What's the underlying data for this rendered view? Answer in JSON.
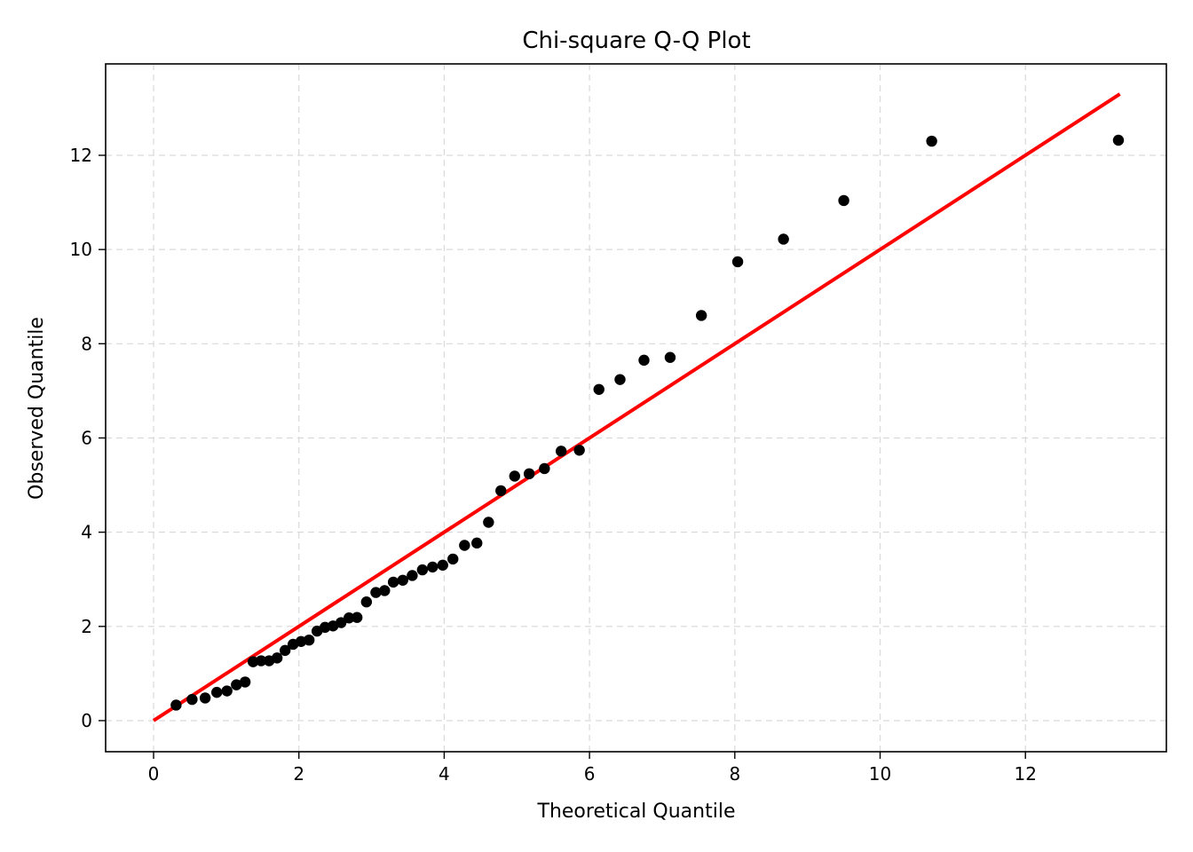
{
  "chart_data": {
    "type": "scatter",
    "title": "Chi-square Q-Q Plot",
    "xlabel": "Theoretical Quantile",
    "ylabel": "Observed Quantile",
    "xlim": [
      -0.66,
      13.94
    ],
    "ylim": [
      -0.66,
      13.94
    ],
    "xticks": [
      0,
      2,
      4,
      6,
      8,
      10,
      12
    ],
    "yticks": [
      0,
      2,
      4,
      6,
      8,
      10,
      12
    ],
    "grid": true,
    "colors": {
      "points": "#000000",
      "reference_line": "#ff0000",
      "grid": "#d9d9d9"
    },
    "reference_line": {
      "x": [
        0,
        13.3
      ],
      "y": [
        0,
        13.3
      ]
    },
    "x": [
      0.31,
      0.53,
      0.71,
      0.87,
      1.01,
      1.14,
      1.26,
      1.37,
      1.48,
      1.59,
      1.7,
      1.81,
      1.92,
      2.03,
      2.14,
      2.25,
      2.36,
      2.47,
      2.58,
      2.69,
      2.8,
      2.93,
      3.06,
      3.18,
      3.3,
      3.43,
      3.56,
      3.7,
      3.84,
      3.98,
      4.12,
      4.28,
      4.45,
      4.61,
      4.78,
      4.97,
      5.17,
      5.38,
      5.61,
      5.86,
      6.13,
      6.42,
      6.75,
      7.11,
      7.54,
      8.04,
      8.67,
      9.5,
      10.71,
      13.28
    ],
    "y": [
      0.33,
      0.45,
      0.48,
      0.6,
      0.63,
      0.76,
      0.82,
      1.25,
      1.27,
      1.27,
      1.33,
      1.49,
      1.62,
      1.68,
      1.71,
      1.9,
      1.98,
      2.01,
      2.08,
      2.18,
      2.19,
      2.52,
      2.72,
      2.76,
      2.94,
      2.98,
      3.08,
      3.2,
      3.26,
      3.3,
      3.43,
      3.72,
      3.77,
      4.21,
      4.88,
      5.19,
      5.24,
      5.35,
      5.72,
      5.74,
      7.03,
      7.24,
      7.65,
      7.71,
      8.6,
      9.74,
      10.22,
      11.04,
      12.3,
      12.32
    ]
  }
}
